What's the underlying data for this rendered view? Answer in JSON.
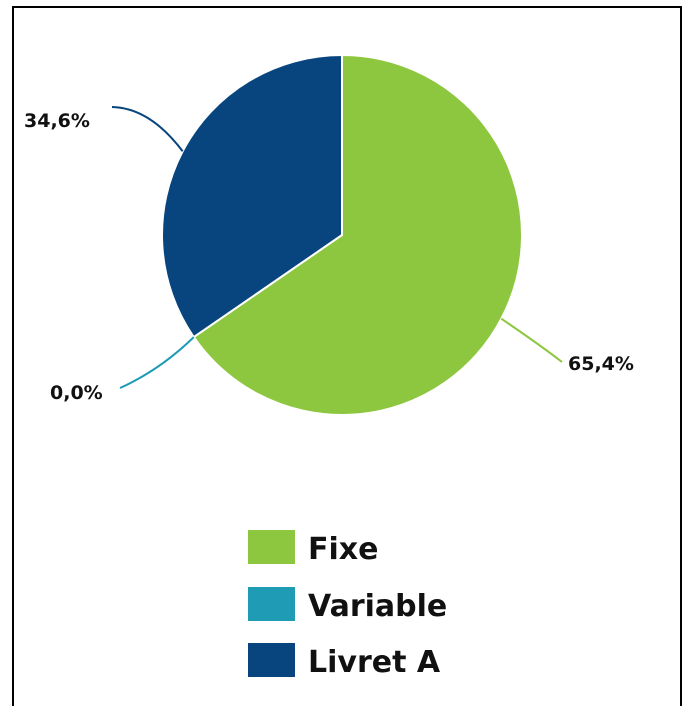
{
  "chart_data": {
    "type": "pie",
    "slices": [
      {
        "name": "Fixe",
        "value": 65.4,
        "label": "65,4%",
        "color": "#8dc63f"
      },
      {
        "name": "Variable",
        "value": 0.0,
        "label": "0,0%",
        "color": "#1f9bb5"
      },
      {
        "name": "Livret A",
        "value": 34.6,
        "label": "34,6%",
        "color": "#08457e"
      }
    ],
    "legend": {
      "position": "bottom",
      "items": [
        "Fixe",
        "Variable",
        "Livret A"
      ]
    }
  }
}
